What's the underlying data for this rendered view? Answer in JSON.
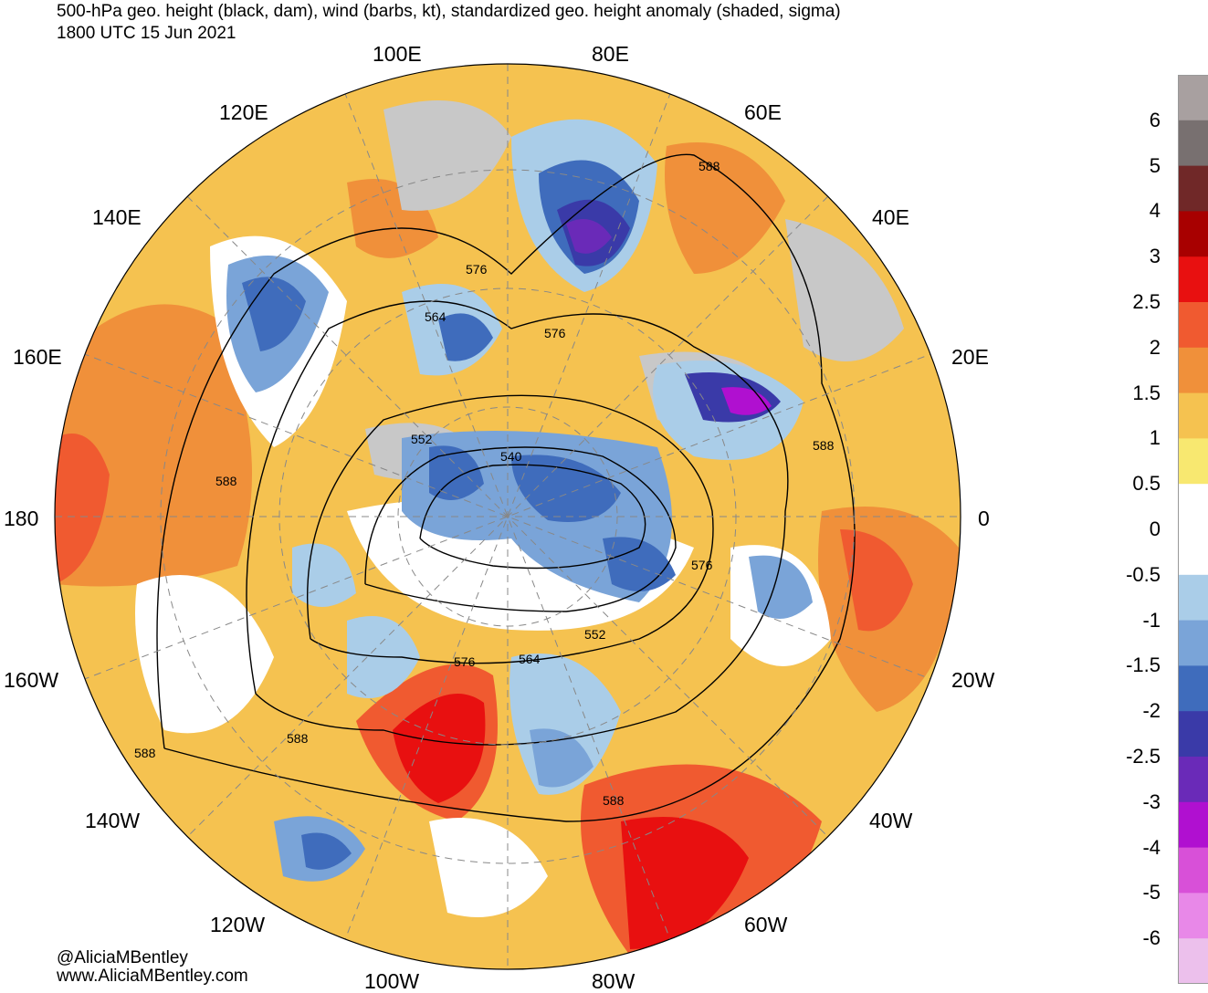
{
  "header": {
    "title": "500-hPa geo. height (black, dam), wind (barbs, kt), standardized geo. height anomaly (shaded, sigma)",
    "valid_time": "1800 UTC 15 Jun 2021"
  },
  "longitude_labels": [
    "100E",
    "80E",
    "120E",
    "60E",
    "140E",
    "40E",
    "160E",
    "20E",
    "180",
    "0",
    "160W",
    "20W",
    "140W",
    "40W",
    "120W",
    "60W",
    "100W",
    "80W"
  ],
  "contour_labels": [
    "588",
    "576",
    "564",
    "576",
    "552",
    "540",
    "588",
    "588",
    "576",
    "552",
    "564",
    "576",
    "588",
    "588",
    "588"
  ],
  "colorbar": {
    "labels": [
      "6",
      "5",
      "4",
      "3",
      "2.5",
      "2",
      "1.5",
      "1",
      "0.5",
      "0",
      "-0.5",
      "-1",
      "-1.5",
      "-2",
      "-2.5",
      "-3",
      "-4",
      "-5",
      "-6"
    ],
    "colors": [
      "#a8a0a0",
      "#787070",
      "#702828",
      "#a80000",
      "#e81010",
      "#f05a30",
      "#f0903a",
      "#f5c250",
      "#f8e870",
      "#ffffff",
      "#ffffff",
      "#aacde8",
      "#7aa4d8",
      "#3f6cbc",
      "#3a3aa8",
      "#6a2ab8",
      "#b010d0",
      "#d850d8",
      "#e888e8",
      "#ecc0ec"
    ]
  },
  "credits": {
    "handle": "@AliciaMBentley",
    "website": "www.AliciaMBentley.com"
  }
}
